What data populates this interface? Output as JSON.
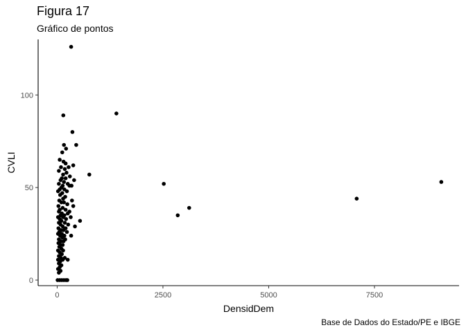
{
  "chart_data": {
    "type": "scatter",
    "title": "Figura 17",
    "subtitle": "Gráfico de pontos",
    "caption": "Base de Dados do Estado/PE e IBGE",
    "xlabel": "DensidDem",
    "ylabel": "CVLI",
    "xlim": [
      -450,
      9500
    ],
    "ylim": [
      -3,
      130
    ],
    "x_ticks": [
      0,
      2500,
      5000,
      7500
    ],
    "x_tick_labels": [
      "0",
      "2500",
      "5000",
      "7500"
    ],
    "y_ticks": [
      0,
      50,
      100
    ],
    "y_tick_labels": [
      "0",
      "50",
      "100"
    ],
    "grid": false,
    "legend": "none",
    "point_color": "#000000",
    "points": [
      {
        "x": 330,
        "y": 126
      },
      {
        "x": 145,
        "y": 89
      },
      {
        "x": 1400,
        "y": 90
      },
      {
        "x": 360,
        "y": 80
      },
      {
        "x": 450,
        "y": 73
      },
      {
        "x": 160,
        "y": 73
      },
      {
        "x": 210,
        "y": 71
      },
      {
        "x": 120,
        "y": 69
      },
      {
        "x": 60,
        "y": 65
      },
      {
        "x": 150,
        "y": 64
      },
      {
        "x": 200,
        "y": 63
      },
      {
        "x": 380,
        "y": 62
      },
      {
        "x": 90,
        "y": 61
      },
      {
        "x": 270,
        "y": 61
      },
      {
        "x": 40,
        "y": 59
      },
      {
        "x": 180,
        "y": 60
      },
      {
        "x": 220,
        "y": 58
      },
      {
        "x": 760,
        "y": 57
      },
      {
        "x": 140,
        "y": 57
      },
      {
        "x": 300,
        "y": 56
      },
      {
        "x": 110,
        "y": 55
      },
      {
        "x": 200,
        "y": 55
      },
      {
        "x": 80,
        "y": 54
      },
      {
        "x": 400,
        "y": 54
      },
      {
        "x": 160,
        "y": 53
      },
      {
        "x": 250,
        "y": 52
      },
      {
        "x": 2520,
        "y": 52
      },
      {
        "x": 9080,
        "y": 53
      },
      {
        "x": 40,
        "y": 52
      },
      {
        "x": 130,
        "y": 51
      },
      {
        "x": 290,
        "y": 51
      },
      {
        "x": 340,
        "y": 51
      },
      {
        "x": 100,
        "y": 50
      },
      {
        "x": 60,
        "y": 49
      },
      {
        "x": 170,
        "y": 49
      },
      {
        "x": 230,
        "y": 48
      },
      {
        "x": 20,
        "y": 48
      },
      {
        "x": 120,
        "y": 47
      },
      {
        "x": 70,
        "y": 46
      },
      {
        "x": 190,
        "y": 45
      },
      {
        "x": 140,
        "y": 44
      },
      {
        "x": 7080,
        "y": 44
      },
      {
        "x": 50,
        "y": 43
      },
      {
        "x": 350,
        "y": 43
      },
      {
        "x": 100,
        "y": 42
      },
      {
        "x": 160,
        "y": 42
      },
      {
        "x": 240,
        "y": 41
      },
      {
        "x": 30,
        "y": 40
      },
      {
        "x": 380,
        "y": 40
      },
      {
        "x": 130,
        "y": 39
      },
      {
        "x": 3120,
        "y": 39
      },
      {
        "x": 60,
        "y": 38
      },
      {
        "x": 200,
        "y": 38
      },
      {
        "x": 290,
        "y": 37
      },
      {
        "x": 40,
        "y": 37
      },
      {
        "x": 110,
        "y": 36
      },
      {
        "x": 250,
        "y": 36
      },
      {
        "x": 80,
        "y": 35
      },
      {
        "x": 2850,
        "y": 35
      },
      {
        "x": 170,
        "y": 35
      },
      {
        "x": 20,
        "y": 34
      },
      {
        "x": 140,
        "y": 34
      },
      {
        "x": 320,
        "y": 34
      },
      {
        "x": 60,
        "y": 33
      },
      {
        "x": 210,
        "y": 33
      },
      {
        "x": 100,
        "y": 32
      },
      {
        "x": 540,
        "y": 32
      },
      {
        "x": 40,
        "y": 31
      },
      {
        "x": 180,
        "y": 31
      },
      {
        "x": 260,
        "y": 30
      },
      {
        "x": 80,
        "y": 30
      },
      {
        "x": 130,
        "y": 29
      },
      {
        "x": 420,
        "y": 29
      },
      {
        "x": 30,
        "y": 28
      },
      {
        "x": 200,
        "y": 28
      },
      {
        "x": 90,
        "y": 27
      },
      {
        "x": 150,
        "y": 27
      },
      {
        "x": 50,
        "y": 26
      },
      {
        "x": 230,
        "y": 26
      },
      {
        "x": 110,
        "y": 25
      },
      {
        "x": 20,
        "y": 25
      },
      {
        "x": 170,
        "y": 24
      },
      {
        "x": 70,
        "y": 24
      },
      {
        "x": 330,
        "y": 24
      },
      {
        "x": 120,
        "y": 23
      },
      {
        "x": 40,
        "y": 22
      },
      {
        "x": 190,
        "y": 22
      },
      {
        "x": 90,
        "y": 21
      },
      {
        "x": 150,
        "y": 21
      },
      {
        "x": 30,
        "y": 20
      },
      {
        "x": 80,
        "y": 19
      },
      {
        "x": 130,
        "y": 19
      },
      {
        "x": 50,
        "y": 18
      },
      {
        "x": 100,
        "y": 17
      },
      {
        "x": 20,
        "y": 16
      },
      {
        "x": 140,
        "y": 16
      },
      {
        "x": 60,
        "y": 15
      },
      {
        "x": 110,
        "y": 14
      },
      {
        "x": 40,
        "y": 13
      },
      {
        "x": 90,
        "y": 12
      },
      {
        "x": 180,
        "y": 12
      },
      {
        "x": 20,
        "y": 11
      },
      {
        "x": 130,
        "y": 11
      },
      {
        "x": 70,
        "y": 10
      },
      {
        "x": 250,
        "y": 11
      },
      {
        "x": 40,
        "y": 9
      },
      {
        "x": 100,
        "y": 8
      },
      {
        "x": 60,
        "y": 7
      },
      {
        "x": 20,
        "y": 6
      },
      {
        "x": 80,
        "y": 5
      },
      {
        "x": 40,
        "y": 4
      },
      {
        "x": 10,
        "y": 0
      },
      {
        "x": 60,
        "y": 0
      },
      {
        "x": 110,
        "y": 0
      },
      {
        "x": 160,
        "y": 0
      },
      {
        "x": 210,
        "y": 0
      },
      {
        "x": 240,
        "y": 0
      }
    ]
  }
}
